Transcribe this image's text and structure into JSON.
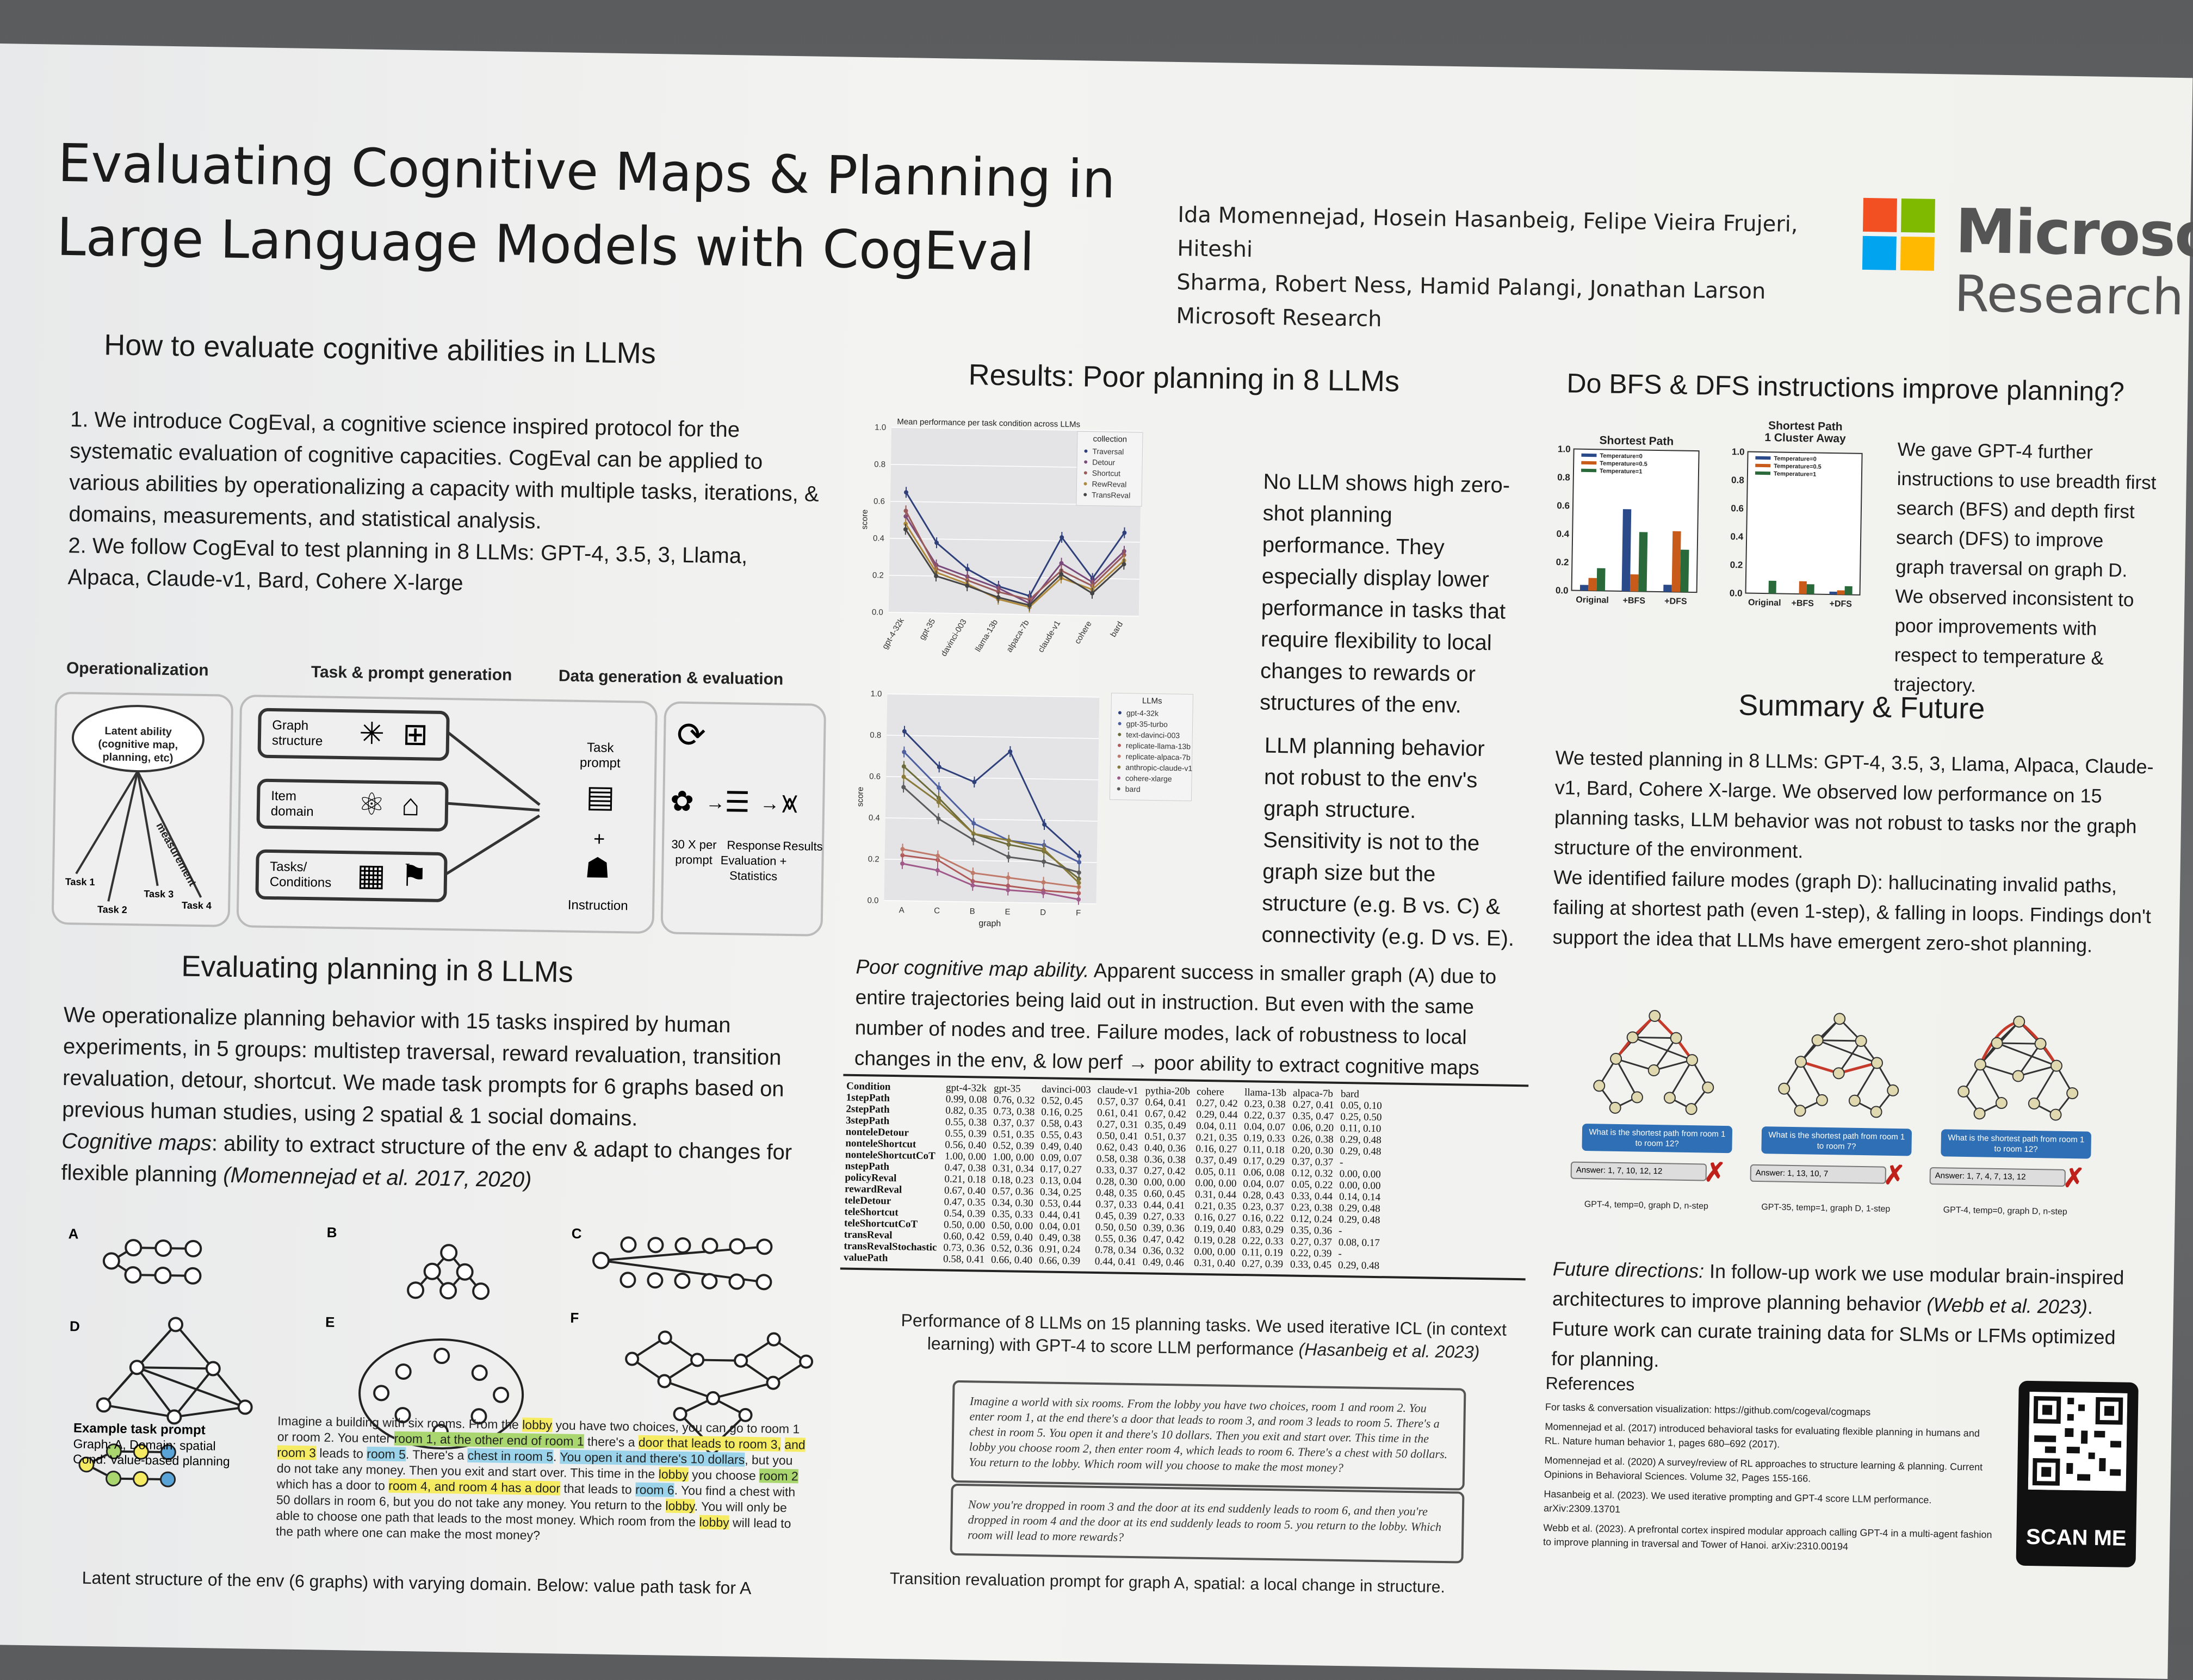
{
  "header": {
    "title_line1": "Evaluating Cognitive Maps & Planning in",
    "title_line2": "Large Language Models with CogEval",
    "authors_line1": "Ida Momennejad, Hosein Hasanbeig, Felipe Vieira Frujeri, Hiteshi",
    "authors_line2": "Sharma, Robert Ness, Hamid Palangi, Jonathan Larson",
    "affiliation": "Microsoft Research",
    "logo_word": "Microsoft",
    "logo_sub": "Research",
    "logo_colors": [
      "#f25022",
      "#7fba00",
      "#00a4ef",
      "#ffb900"
    ]
  },
  "section1": {
    "heading": "How to evaluate cognitive abilities in LLMs",
    "p1": "1. We introduce CogEval, a cognitive science inspired protocol for the systematic evaluation of cognitive capacities. CogEval can be applied to various abilities by operationalizing a capacity with multiple tasks, iterations, & domains, measurements, and statistical analysis.",
    "p2": "2. We follow CogEval to test planning in 8 LLMs: GPT-4, 3.5, 3, Llama, Alpaca, Claude-v1, Bard, Cohere X-large"
  },
  "diagram": {
    "col1": "Operationalization",
    "col2": "Task & prompt generation",
    "col3": "Data generation & evaluation",
    "cloud": "Latent ability (cognitive map, planning, etc)",
    "measurement": "measurement",
    "tasks": [
      "Task 1",
      "Task 2",
      "Task 3",
      "Task 4"
    ],
    "box1": "Graph structure",
    "box2": "Item domain",
    "box3": "Tasks/ Conditions",
    "task_prompt": "Task prompt",
    "instruction": "Instruction",
    "per_prompt": "30 X per prompt",
    "response_eval": "Response Evaluation + Statistics",
    "results": "Results"
  },
  "section2": {
    "heading": "Evaluating planning in 8 LLMs",
    "p1": "We operationalize planning behavior with 15 tasks inspired by human experiments, in 5 groups: multistep traversal, reward revaluation, transition revaluation, detour, shortcut. We made task prompts for 6 graphs based on previous human studies, using 2 spatial & 1 social domains.",
    "p2_italic": "Cognitive maps",
    "p2_rest": ": ability to extract structure of the env & adapt to changes for flexible planning ",
    "p2_cite": "(Momennejad et al. 2017, 2020)",
    "graph_labels": [
      "A",
      "B",
      "C",
      "D",
      "E",
      "F"
    ],
    "example_title": "Example task prompt",
    "example_graph": "Graph: A, Domain: spatial",
    "example_cond": "Cond: Value-based planning",
    "example_text": [
      {
        "t": "Imagine a building with six rooms. From the ",
        "h": ""
      },
      {
        "t": "lobby",
        "h": "hl"
      },
      {
        "t": " you have two choices, you can go to room 1 or room 2. You enter ",
        "h": ""
      },
      {
        "t": "room 1, at the other end of room 1",
        "h": "hlg"
      },
      {
        "t": " there's a ",
        "h": ""
      },
      {
        "t": "door that leads to room 3,",
        "h": "hl"
      },
      {
        "t": " ",
        "h": ""
      },
      {
        "t": "and room 3",
        "h": "hl"
      },
      {
        "t": " leads to ",
        "h": ""
      },
      {
        "t": "room 5",
        "h": "hlb"
      },
      {
        "t": ". There's a ",
        "h": ""
      },
      {
        "t": "chest in room 5",
        "h": "hlb"
      },
      {
        "t": ". ",
        "h": ""
      },
      {
        "t": "You open it and there's 10 dollars",
        "h": "hlb"
      },
      {
        "t": ", but you do not take any money. Then you exit and start over. This time in the ",
        "h": ""
      },
      {
        "t": "lobby",
        "h": "hl"
      },
      {
        "t": " you choose ",
        "h": ""
      },
      {
        "t": "room 2",
        "h": "hlg"
      },
      {
        "t": " which has a door to ",
        "h": ""
      },
      {
        "t": "room 4, and room 4 has a door",
        "h": "hl"
      },
      {
        "t": " that leads to ",
        "h": ""
      },
      {
        "t": "room 6",
        "h": "hlb"
      },
      {
        "t": ". You find a chest with 50 dollars in room 6, but you do not take any money. You return to the ",
        "h": ""
      },
      {
        "t": "lobby",
        "h": "hl"
      },
      {
        "t": ". You will only be able to choose one path that leads to the most money. Which room from the ",
        "h": ""
      },
      {
        "t": "lobby",
        "h": "hl"
      },
      {
        "t": " will lead to the path where one can make the most money?",
        "h": ""
      }
    ],
    "caption": "Latent structure of the env (6 graphs) with varying domain. Below: value path task for A"
  },
  "results": {
    "heading": "Results: Poor planning in 8 LLMs",
    "text1": "No LLM shows high zero-shot planning performance. They especially display lower performance in tasks that require flexibility to local changes to rewards or structures of the env.",
    "text2": "LLM planning behavior not robust to the env's graph structure. Sensitivity is not to the graph size but the structure (e.g. B vs. C) & connectivity (e.g. D vs. E).",
    "para_italic": "Poor cognitive map ability.",
    "para_rest": " Apparent success in smaller graph (A) due to entire trajectories being laid out in instruction. But even with the same number of nodes and tree. Failure modes, lack of robustness to local changes in the env, & low perf → poor ability to extract cognitive maps",
    "table_caption_1": "Performance of 8 LLMs on 15 planning tasks. We used iterative ICL (in context",
    "table_caption_2": "learning) with GPT-4 to score LLM performance ",
    "table_caption_cite": "(Hasanbeig et al. 2023)",
    "prompt1": "Imagine a world with six rooms. From the lobby you have two choices, room 1 and room 2. You enter room 1, at the end there's a door that leads to room 3, and room 3 leads to room 5. There's a chest in room 5. You open it and there's 10 dollars. Then you exit and start over. This time in the lobby you choose room 2, then enter room 4, which leads to room 6. There's a chest with 50 dollars. You return to the lobby. Which room will you choose to make the most money?",
    "prompt2": "Now you're dropped in room 3 and the door at its end suddenly leads to room 6, and then you're dropped in room 4 and the door at its end suddenly leads to room 5. you return to the lobby. Which room will lead to more rewards?",
    "prompt_caption": "Transition revaluation prompt for graph A, spatial: a local change in structure."
  },
  "table": {
    "columns": [
      "Condition",
      "gpt-4-32k",
      "gpt-35",
      "davinci-003",
      "claude-v1",
      "pythia-20b",
      "cohere",
      "llama-13b",
      "alpaca-7b",
      "bard"
    ],
    "rows": [
      [
        "1stepPath",
        "0.99, 0.08",
        "0.76, 0.32",
        "0.52, 0.45",
        "0.57, 0.37",
        "0.64, 0.41",
        "0.27, 0.42",
        "0.23, 0.38",
        "0.27, 0.41",
        "0.05, 0.10"
      ],
      [
        "2stepPath",
        "0.82, 0.35",
        "0.73, 0.38",
        "0.16, 0.25",
        "0.61, 0.41",
        "0.67, 0.42",
        "0.29, 0.44",
        "0.22, 0.37",
        "0.35, 0.47",
        "0.25, 0.50"
      ],
      [
        "3stepPath",
        "0.55, 0.38",
        "0.37, 0.37",
        "0.58, 0.43",
        "0.27, 0.31",
        "0.35, 0.49",
        "0.04, 0.11",
        "0.04, 0.07",
        "0.06, 0.20",
        "0.11, 0.10"
      ],
      [
        "nonteleDetour",
        "0.55, 0.39",
        "0.51, 0.35",
        "0.55, 0.43",
        "0.50, 0.41",
        "0.51, 0.37",
        "0.21, 0.35",
        "0.19, 0.33",
        "0.26, 0.38",
        "0.29, 0.48"
      ],
      [
        "nonteleShortcut",
        "0.56, 0.40",
        "0.52, 0.39",
        "0.49, 0.40",
        "0.62, 0.43",
        "0.40, 0.36",
        "0.16, 0.27",
        "0.11, 0.18",
        "0.20, 0.30",
        "0.29, 0.48"
      ],
      [
        "nonteleShortcutCoT",
        "1.00, 0.00",
        "1.00, 0.00",
        "0.09, 0.07",
        "0.58, 0.38",
        "0.36, 0.38",
        "0.37, 0.49",
        "0.17, 0.29",
        "0.37, 0.37",
        "-"
      ],
      [
        "nstepPath",
        "0.47, 0.38",
        "0.31, 0.34",
        "0.17, 0.27",
        "0.33, 0.37",
        "0.27, 0.42",
        "0.05, 0.11",
        "0.06, 0.08",
        "0.12, 0.32",
        "0.00, 0.00"
      ],
      [
        "policyReval",
        "0.21, 0.18",
        "0.18, 0.23",
        "0.13, 0.04",
        "0.28, 0.30",
        "0.00, 0.00",
        "0.00, 0.00",
        "0.04, 0.07",
        "0.05, 0.22",
        "0.00, 0.00"
      ],
      [
        "rewardReval",
        "0.67, 0.40",
        "0.57, 0.36",
        "0.34, 0.25",
        "0.48, 0.35",
        "0.60, 0.45",
        "0.31, 0.44",
        "0.28, 0.43",
        "0.33, 0.44",
        "0.14, 0.14"
      ],
      [
        "teleDetour",
        "0.47, 0.35",
        "0.34, 0.30",
        "0.53, 0.44",
        "0.37, 0.33",
        "0.44, 0.41",
        "0.21, 0.35",
        "0.23, 0.37",
        "0.23, 0.38",
        "0.29, 0.48"
      ],
      [
        "teleShortcut",
        "0.54, 0.39",
        "0.35, 0.33",
        "0.44, 0.41",
        "0.45, 0.39",
        "0.27, 0.33",
        "0.16, 0.27",
        "0.16, 0.22",
        "0.12, 0.24",
        "0.29, 0.48"
      ],
      [
        "teleShortcutCoT",
        "0.50, 0.00",
        "0.50, 0.00",
        "0.04, 0.01",
        "0.50, 0.50",
        "0.39, 0.36",
        "0.19, 0.40",
        "0.83, 0.29",
        "0.35, 0.36",
        "-"
      ],
      [
        "transReval",
        "0.60, 0.42",
        "0.59, 0.40",
        "0.49, 0.38",
        "0.55, 0.36",
        "0.47, 0.42",
        "0.19, 0.28",
        "0.22, 0.33",
        "0.27, 0.37",
        "0.08, 0.17"
      ],
      [
        "transRevalStochastic",
        "0.73, 0.36",
        "0.52, 0.36",
        "0.91, 0.24",
        "0.78, 0.34",
        "0.36, 0.32",
        "0.00, 0.00",
        "0.11, 0.19",
        "0.22, 0.39",
        "-"
      ],
      [
        "valuePath",
        "0.58, 0.41",
        "0.66, 0.40",
        "0.66, 0.39",
        "0.44, 0.41",
        "0.49, 0.46",
        "0.31, 0.40",
        "0.27, 0.39",
        "0.33, 0.45",
        "0.29, 0.48"
      ]
    ]
  },
  "bfs": {
    "heading": "Do BFS & DFS instructions improve planning?",
    "text": "We gave GPT-4 further instructions to use breadth first search (BFS) and depth first search (DFS) to improve graph traversal on graph D. We observed inconsistent to poor improvements with respect to temperature & trajectory."
  },
  "summary": {
    "heading": "Summary & Future",
    "p1": "We tested planning in 8 LLMs: GPT-4, 3.5, 3, Llama, Alpaca, Claude-v1, Bard, Cohere X-large. We observed low performance on 15 planning tasks, LLM behavior was not robust to tasks nor the graph structure of the environment.",
    "p2": "We identified failure modes (graph D): hallucinating invalid paths, failing at shortest path (even 1-step), & falling in loops. Findings don't support the idea that LLMs have emergent zero-shot planning.",
    "failures": [
      {
        "question": "What is the shortest path from room 1 to room 12?",
        "answer": "Answer: 1, 7, 10, 12, 12",
        "caption": "GPT-4, temp=0, graph D, n-step"
      },
      {
        "question": "What is the shortest path from room 1 to room 7?",
        "answer": "Answer: 1, 13, 10, 7",
        "caption": "GPT-35, temp=1, graph D, 1-step"
      },
      {
        "question": "What is the shortest path from room 1 to room 12?",
        "answer": "Answer: 1, 7, 4, 7, 13, 12",
        "caption": "GPT-4, temp=0, graph D, n-step"
      }
    ],
    "future_italic": "Future directions:",
    "future_rest": " In follow-up work we use modular brain-inspired architectures to improve planning behavior ",
    "future_cite": "(Webb et al. 2023)",
    "future_end": ". Future work can curate training data for SLMs or LFMs optimized for planning."
  },
  "references": {
    "heading": "References",
    "items": [
      "For tasks & conversation visualization: https://github.com/cogeval/cogmaps",
      "Momennejad et al. (2017) introduced behavioral tasks for evaluating flexible planning in humans and RL. Nature human behavior 1, pages 680–692 (2017).",
      "Momennejad et al. (2020) A survey/review of RL approaches to structure learning & planning. Current Opinions in Behavioral Sciences. Volume 32, Pages 155-166.",
      "Hasanbeig et al. (2023). We used iterative prompting and GPT-4 score LLM performance. arXiv:2309.13701",
      "Webb et al. (2023). A prefrontal cortex inspired modular approach calling GPT-4 in a multi-agent fashion to improve planning in traversal and Tower of Hanoi. arXiv:2310.00194"
    ],
    "qr_label": "SCAN ME"
  },
  "chart_data": [
    {
      "type": "line",
      "title": "Mean performance per task condition across LLMs",
      "ylabel": "score",
      "ylim": [
        0,
        1.0
      ],
      "yticks": [
        "0.0",
        "0.2",
        "0.4",
        "0.6",
        "0.8",
        "1.0"
      ],
      "categories": [
        "gpt-4-32k",
        "gpt-35",
        "davinci-003",
        "llama-13b",
        "alpaca-7b",
        "claude-v1",
        "cohere",
        "bard"
      ],
      "legend_title": "collection",
      "series": [
        {
          "name": "Traversal",
          "color": "#2e3f7a",
          "values": [
            0.65,
            0.38,
            0.24,
            0.15,
            0.1,
            0.42,
            0.2,
            0.45
          ]
        },
        {
          "name": "Detour",
          "color": "#7a4a7a",
          "values": [
            0.52,
            0.26,
            0.2,
            0.14,
            0.06,
            0.28,
            0.18,
            0.35
          ]
        },
        {
          "name": "Shortcut",
          "color": "#9a5a5a",
          "values": [
            0.55,
            0.24,
            0.18,
            0.12,
            0.08,
            0.24,
            0.16,
            0.33
          ]
        },
        {
          "name": "RewReval",
          "color": "#b08a3a",
          "values": [
            0.48,
            0.22,
            0.16,
            0.08,
            0.04,
            0.2,
            0.14,
            0.3
          ]
        },
        {
          "name": "TransReval",
          "color": "#444444",
          "values": [
            0.45,
            0.2,
            0.15,
            0.09,
            0.05,
            0.22,
            0.12,
            0.28
          ]
        }
      ]
    },
    {
      "type": "line",
      "ylabel": "score",
      "xlabel": "graph",
      "ylim": [
        0,
        1.0
      ],
      "yticks": [
        "0.0",
        "0.2",
        "0.4",
        "0.6",
        "0.8",
        "1.0"
      ],
      "categories": [
        "A",
        "C",
        "B",
        "E",
        "D",
        "F"
      ],
      "legend_title": "LLMs",
      "series": [
        {
          "name": "gpt-4-32k",
          "color": "#2e3f7a",
          "values": [
            0.82,
            0.65,
            0.58,
            0.73,
            0.38,
            0.23
          ]
        },
        {
          "name": "gpt-35-turbo",
          "color": "#4e5fa0",
          "values": [
            0.72,
            0.55,
            0.38,
            0.3,
            0.28,
            0.2
          ]
        },
        {
          "name": "text-davinci-003",
          "color": "#6a6a3a",
          "values": [
            0.65,
            0.5,
            0.33,
            0.28,
            0.25,
            0.12
          ]
        },
        {
          "name": "replicate-llama-13b",
          "color": "#b05a5a",
          "values": [
            0.22,
            0.2,
            0.1,
            0.08,
            0.06,
            0.05
          ]
        },
        {
          "name": "replicate-alpaca-7b",
          "color": "#c07a6a",
          "values": [
            0.25,
            0.22,
            0.14,
            0.12,
            0.1,
            0.08
          ]
        },
        {
          "name": "anthropic-claude-v1",
          "color": "#8a7a3a",
          "values": [
            0.6,
            0.48,
            0.33,
            0.3,
            0.26,
            0.1
          ]
        },
        {
          "name": "cohere-xlarge",
          "color": "#a05a8a",
          "values": [
            0.18,
            0.15,
            0.08,
            0.06,
            0.05,
            0.02
          ]
        },
        {
          "name": "bard",
          "color": "#5a5a5a",
          "values": [
            0.55,
            0.4,
            0.3,
            0.22,
            0.2,
            0.15
          ]
        }
      ]
    },
    {
      "type": "bar",
      "title": "Shortest Path",
      "ylim": [
        0,
        1.0
      ],
      "yticks": [
        "0.0",
        "0.2",
        "0.4",
        "0.6",
        "0.8",
        "1.0"
      ],
      "categories": [
        "Original",
        "+BFS",
        "+DFS"
      ],
      "series": [
        {
          "name": "Temperature=0",
          "color": "#2a4a8a",
          "values": [
            0.04,
            0.58,
            0.05
          ]
        },
        {
          "name": "Temperature=0.5",
          "color": "#c85a1a",
          "values": [
            0.09,
            0.12,
            0.43
          ]
        },
        {
          "name": "Temperature=1",
          "color": "#2a6a3a",
          "values": [
            0.16,
            0.42,
            0.3
          ]
        }
      ]
    },
    {
      "type": "bar",
      "title": "Shortest Path 1 Cluster Away",
      "ylim": [
        0,
        1.0
      ],
      "yticks": [
        "0.0",
        "0.2",
        "0.4",
        "0.6",
        "0.8",
        "1.0"
      ],
      "categories": [
        "Original",
        "+BFS",
        "+DFS"
      ],
      "series": [
        {
          "name": "Temperature=0",
          "color": "#2a4a8a",
          "values": [
            0.0,
            0.0,
            0.02
          ]
        },
        {
          "name": "Temperature=0.5",
          "color": "#c85a1a",
          "values": [
            0.0,
            0.09,
            0.03
          ]
        },
        {
          "name": "Temperature=1",
          "color": "#2a6a3a",
          "values": [
            0.09,
            0.07,
            0.06
          ]
        }
      ]
    }
  ]
}
